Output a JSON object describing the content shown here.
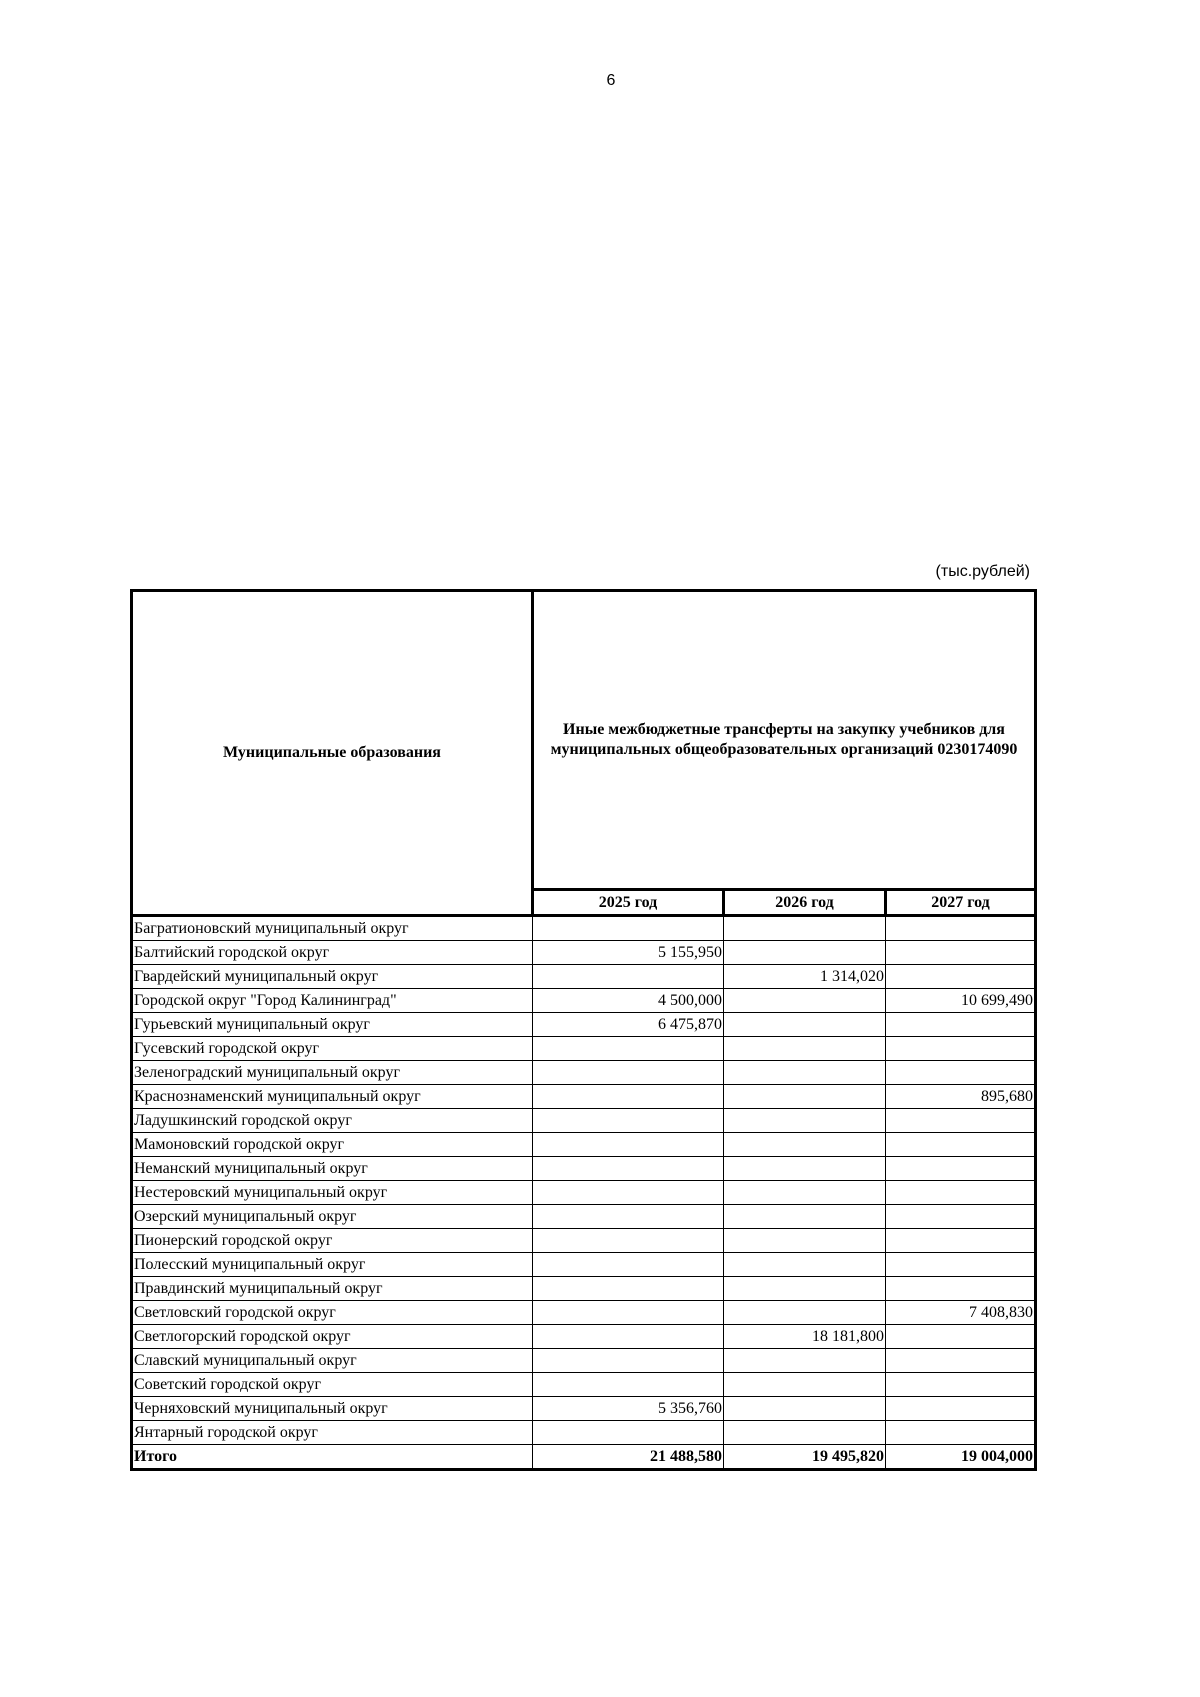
{
  "page_number": "6",
  "unit": "(тыс.рублей)",
  "table": {
    "header": {
      "municipalities": "Муниципальные образования",
      "transfer": "Иные межбюджетные трансферты на закупку учебников для муниципальных общеобразовательных организаций 0230174090",
      "years": [
        "2025 год",
        "2026 год",
        "2027 год"
      ]
    },
    "rows": [
      [
        "Багратионовский муниципальный округ",
        null,
        null,
        null
      ],
      [
        "Балтийский городской округ",
        "5 155,950",
        null,
        null
      ],
      [
        "Гвардейский муниципальный округ",
        null,
        "1 314,020",
        null
      ],
      [
        "Городской округ \"Город Калининград\"",
        "4 500,000",
        null,
        "10 699,490"
      ],
      [
        "Гурьевский муниципальный округ",
        "6 475,870",
        null,
        null
      ],
      [
        "Гусевский городской округ",
        null,
        null,
        null
      ],
      [
        "Зеленоградский муниципальный округ",
        null,
        null,
        null
      ],
      [
        "Краснознаменский муниципальный округ",
        null,
        null,
        "895,680"
      ],
      [
        "Ладушкинский городской округ",
        null,
        null,
        null
      ],
      [
        "Мамоновский городской округ",
        null,
        null,
        null
      ],
      [
        "Неманский муниципальный округ",
        null,
        null,
        null
      ],
      [
        "Нестеровский муниципальный округ",
        null,
        null,
        null
      ],
      [
        "Озерский муниципальный округ",
        null,
        null,
        null
      ],
      [
        "Пионерский городской округ",
        null,
        null,
        null
      ],
      [
        "Полесский муниципальный округ",
        null,
        null,
        null
      ],
      [
        "Правдинский муниципальный округ",
        null,
        null,
        null
      ],
      [
        "Светловский городской округ",
        null,
        null,
        "7 408,830"
      ],
      [
        "Светлогорский городской округ",
        null,
        "18 181,800",
        null
      ],
      [
        "Славский муниципальный округ",
        null,
        null,
        null
      ],
      [
        "Советский городской округ",
        null,
        null,
        null
      ],
      [
        "Черняховский муниципальный округ",
        "5 356,760",
        null,
        null
      ],
      [
        "Янтарный городской округ",
        null,
        null,
        null
      ]
    ],
    "total": [
      "Итого",
      "21 488,580",
      "19 495,820",
      "19 004,000"
    ]
  }
}
